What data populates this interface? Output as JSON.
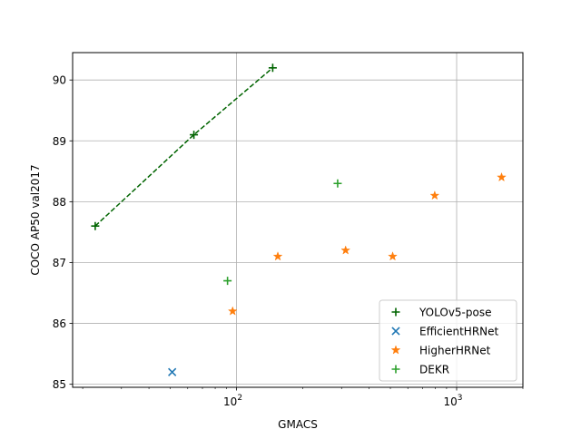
{
  "chart_data": {
    "type": "scatter",
    "xscale": "log",
    "xlim": [
      18,
      2000
    ],
    "ylim": [
      84.95,
      90.45
    ],
    "xlabel": "GMACS",
    "ylabel": "COCO AP50 val2017",
    "grid": true,
    "legend_location": "lower-right",
    "x_tick_labels": [
      {
        "value": 100,
        "base": "10",
        "exp": "2"
      },
      {
        "value": 1000,
        "base": "10",
        "exp": "3"
      }
    ],
    "y_tick_labels": [
      "85",
      "86",
      "87",
      "88",
      "89",
      "90"
    ],
    "y_ticks": [
      85,
      86,
      87,
      88,
      89,
      90
    ],
    "series": [
      {
        "name": "YOLOv5-pose",
        "marker": "plus",
        "color": "#006400",
        "line": "dashed",
        "points": [
          [
            22.8,
            87.6
          ],
          [
            64,
            89.1
          ],
          [
            146,
            90.2
          ]
        ]
      },
      {
        "name": "EfficientHRNet",
        "marker": "x",
        "color": "#1f77b4",
        "line": "none",
        "points": [
          [
            51,
            85.2
          ]
        ]
      },
      {
        "name": "HigherHRNet",
        "marker": "star",
        "color": "#ff7f0e",
        "line": "none",
        "points": [
          [
            96,
            86.2
          ],
          [
            154,
            87.1
          ],
          [
            313,
            87.2
          ],
          [
            512,
            87.1
          ],
          [
            795,
            88.1
          ],
          [
            1600,
            88.4
          ]
        ]
      },
      {
        "name": "DEKR",
        "marker": "plus",
        "color": "#2ca02c",
        "line": "none",
        "points": [
          [
            91,
            86.7
          ],
          [
            288,
            88.3
          ]
        ]
      }
    ]
  }
}
